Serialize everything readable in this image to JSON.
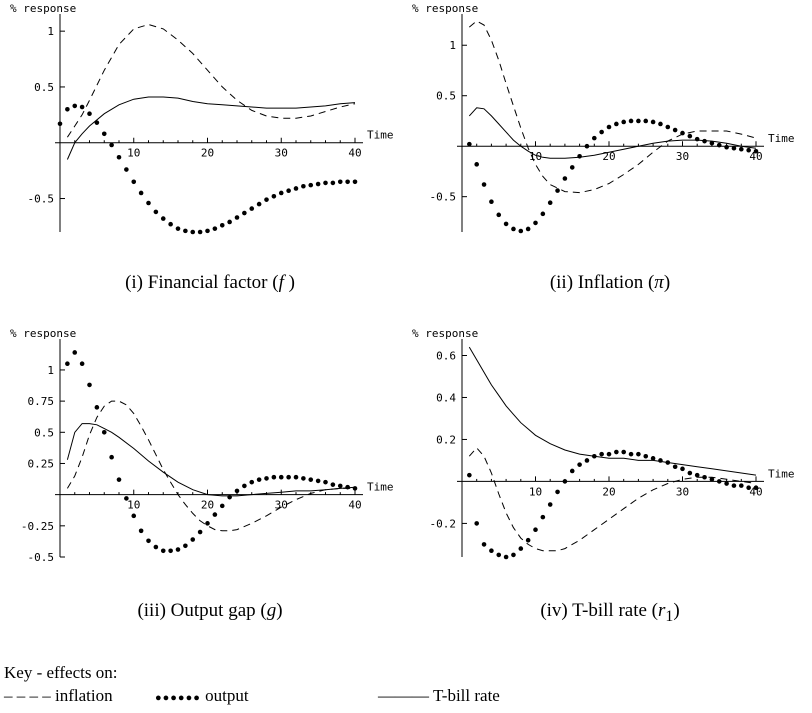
{
  "axis_ylabel": "% response",
  "axis_xlabel": "Time",
  "key": {
    "title": "Key - effects on:",
    "items": [
      {
        "symbol": "– – – –",
        "label": "inflation"
      },
      {
        "symbol": "●●●●●●",
        "label": "output"
      },
      {
        "symbol": "———",
        "label": "T-bill rate"
      }
    ]
  },
  "chart_data": [
    {
      "type": "line",
      "caption_prefix": "(i) Financial factor (",
      "caption_symbol": "f",
      "caption_suffix": " )",
      "ylabel": "% response",
      "xlabel": "Time",
      "xlim": [
        0,
        40
      ],
      "ylim": [
        -0.8,
        1.1
      ],
      "xticks": [
        10,
        20,
        30,
        40
      ],
      "yticks": [
        1,
        0.5,
        -0.5
      ],
      "ytick_labels": [
        "1",
        "0.5",
        "-0.5"
      ],
      "series": [
        {
          "name": "inflation",
          "style": "dashed",
          "x": [
            1,
            2,
            3,
            4,
            6,
            8,
            10,
            12,
            14,
            16,
            18,
            20,
            22,
            24,
            26,
            28,
            30,
            32,
            34,
            36,
            38,
            40
          ],
          "y": [
            0.05,
            0.15,
            0.25,
            0.38,
            0.65,
            0.88,
            1.02,
            1.06,
            1.02,
            0.92,
            0.8,
            0.65,
            0.5,
            0.38,
            0.29,
            0.24,
            0.22,
            0.22,
            0.24,
            0.28,
            0.32,
            0.35
          ]
        },
        {
          "name": "output",
          "style": "dotted",
          "x": [
            0,
            1,
            2,
            3,
            4,
            5,
            6,
            7,
            8,
            9,
            10,
            11,
            12,
            13,
            14,
            15,
            16,
            17,
            18,
            19,
            20,
            21,
            22,
            23,
            24,
            25,
            26,
            27,
            28,
            29,
            30,
            31,
            32,
            33,
            34,
            35,
            36,
            37,
            38,
            39,
            40
          ],
          "y": [
            0.17,
            0.3,
            0.33,
            0.32,
            0.26,
            0.18,
            0.08,
            -0.02,
            -0.13,
            -0.24,
            -0.35,
            -0.45,
            -0.54,
            -0.62,
            -0.68,
            -0.73,
            -0.77,
            -0.79,
            -0.8,
            -0.8,
            -0.79,
            -0.77,
            -0.74,
            -0.71,
            -0.67,
            -0.63,
            -0.59,
            -0.55,
            -0.51,
            -0.48,
            -0.45,
            -0.43,
            -0.41,
            -0.39,
            -0.38,
            -0.37,
            -0.36,
            -0.36,
            -0.35,
            -0.35,
            -0.35
          ]
        },
        {
          "name": "T-bill rate",
          "style": "solid",
          "x": [
            1,
            2,
            3,
            4,
            6,
            8,
            10,
            12,
            14,
            16,
            18,
            20,
            22,
            24,
            26,
            28,
            30,
            32,
            34,
            36,
            38,
            40
          ],
          "y": [
            -0.15,
            0.0,
            0.08,
            0.15,
            0.26,
            0.34,
            0.39,
            0.41,
            0.41,
            0.4,
            0.37,
            0.35,
            0.34,
            0.33,
            0.32,
            0.31,
            0.31,
            0.31,
            0.32,
            0.33,
            0.35,
            0.36
          ]
        }
      ]
    },
    {
      "type": "line",
      "caption_prefix": "(ii) Inflation (",
      "caption_symbol": "π",
      "caption_suffix": ")",
      "ylabel": "% response",
      "xlabel": "Time",
      "xlim": [
        0,
        40
      ],
      "ylim": [
        -0.85,
        1.25
      ],
      "xticks": [
        10,
        20,
        30,
        40
      ],
      "yticks": [
        1,
        0.5,
        -0.5
      ],
      "ytick_labels": [
        "1",
        "0.5",
        "-0.5"
      ],
      "series": [
        {
          "name": "inflation",
          "style": "dashed",
          "x": [
            1,
            2,
            3,
            4,
            5,
            6,
            7,
            8,
            9,
            10,
            11,
            12,
            14,
            16,
            18,
            20,
            22,
            24,
            26,
            28,
            30,
            32,
            34,
            36,
            38,
            40
          ],
          "y": [
            1.18,
            1.24,
            1.2,
            1.05,
            0.85,
            0.62,
            0.4,
            0.18,
            -0.02,
            -0.18,
            -0.3,
            -0.38,
            -0.45,
            -0.46,
            -0.43,
            -0.37,
            -0.28,
            -0.18,
            -0.06,
            0.05,
            0.12,
            0.15,
            0.15,
            0.15,
            0.12,
            0.08
          ]
        },
        {
          "name": "output",
          "style": "dotted",
          "x": [
            1,
            2,
            3,
            4,
            5,
            6,
            7,
            8,
            9,
            10,
            11,
            12,
            13,
            14,
            15,
            16,
            17,
            18,
            19,
            20,
            21,
            22,
            23,
            24,
            25,
            26,
            27,
            28,
            29,
            30,
            31,
            32,
            33,
            34,
            35,
            36,
            37,
            38,
            39,
            40
          ],
          "y": [
            0.02,
            -0.18,
            -0.38,
            -0.55,
            -0.68,
            -0.77,
            -0.82,
            -0.84,
            -0.82,
            -0.76,
            -0.67,
            -0.56,
            -0.44,
            -0.32,
            -0.21,
            -0.1,
            0.0,
            0.08,
            0.14,
            0.19,
            0.22,
            0.24,
            0.25,
            0.25,
            0.25,
            0.24,
            0.22,
            0.19,
            0.16,
            0.13,
            0.1,
            0.07,
            0.05,
            0.03,
            0.01,
            -0.01,
            -0.02,
            -0.03,
            -0.04,
            -0.05
          ]
        },
        {
          "name": "T-bill rate",
          "style": "solid",
          "x": [
            1,
            2,
            3,
            4,
            5,
            6,
            7,
            8,
            9,
            10,
            11,
            12,
            14,
            16,
            18,
            20,
            22,
            24,
            26,
            28,
            30,
            32,
            34,
            36,
            38,
            40
          ],
          "y": [
            0.3,
            0.38,
            0.37,
            0.3,
            0.22,
            0.14,
            0.06,
            0.0,
            -0.05,
            -0.09,
            -0.11,
            -0.12,
            -0.12,
            -0.11,
            -0.09,
            -0.06,
            -0.03,
            0.0,
            0.03,
            0.05,
            0.06,
            0.06,
            0.05,
            0.03,
            0.0,
            -0.02
          ]
        }
      ]
    },
    {
      "type": "line",
      "caption_prefix": "(iii) Output gap (",
      "caption_symbol": "g",
      "caption_suffix": ")",
      "ylabel": "% response",
      "xlabel": "Time",
      "xlim": [
        0,
        40
      ],
      "ylim": [
        -0.5,
        1.2
      ],
      "xticks": [
        10,
        20,
        30,
        40
      ],
      "yticks": [
        1,
        0.75,
        0.5,
        0.25,
        -0.25,
        -0.5
      ],
      "ytick_labels": [
        "1",
        "0.75",
        "0.5",
        "0.25",
        "-0.25",
        "-0.5"
      ],
      "series": [
        {
          "name": "inflation",
          "style": "dashed",
          "x": [
            1,
            2,
            3,
            4,
            5,
            6,
            7,
            8,
            9,
            10,
            11,
            12,
            13,
            14,
            15,
            16,
            17,
            18,
            19,
            20,
            21,
            22,
            23,
            24,
            26,
            28,
            30,
            32,
            34,
            36,
            38,
            40
          ],
          "y": [
            0.05,
            0.15,
            0.3,
            0.48,
            0.62,
            0.71,
            0.75,
            0.75,
            0.72,
            0.65,
            0.55,
            0.44,
            0.32,
            0.2,
            0.1,
            0.0,
            -0.08,
            -0.15,
            -0.21,
            -0.25,
            -0.28,
            -0.29,
            -0.29,
            -0.28,
            -0.23,
            -0.17,
            -0.1,
            -0.04,
            0.01,
            0.04,
            0.05,
            0.05
          ]
        },
        {
          "name": "output",
          "style": "dotted",
          "x": [
            1,
            2,
            3,
            4,
            5,
            6,
            7,
            8,
            9,
            10,
            11,
            12,
            13,
            14,
            15,
            16,
            17,
            18,
            19,
            20,
            21,
            22,
            23,
            24,
            25,
            26,
            27,
            28,
            29,
            30,
            31,
            32,
            33,
            34,
            35,
            36,
            37,
            38,
            39,
            40
          ],
          "y": [
            1.05,
            1.14,
            1.05,
            0.88,
            0.7,
            0.5,
            0.3,
            0.12,
            -0.03,
            -0.17,
            -0.29,
            -0.37,
            -0.42,
            -0.45,
            -0.45,
            -0.44,
            -0.41,
            -0.36,
            -0.3,
            -0.23,
            -0.16,
            -0.09,
            -0.02,
            0.03,
            0.07,
            0.1,
            0.12,
            0.13,
            0.14,
            0.14,
            0.14,
            0.14,
            0.13,
            0.12,
            0.11,
            0.1,
            0.08,
            0.07,
            0.06,
            0.05
          ]
        },
        {
          "name": "T-bill rate",
          "style": "solid",
          "x": [
            1,
            2,
            3,
            4,
            5,
            6,
            7,
            8,
            10,
            12,
            14,
            16,
            18,
            20,
            22,
            24,
            26,
            28,
            30,
            32,
            34,
            36,
            38,
            40
          ],
          "y": [
            0.28,
            0.5,
            0.57,
            0.57,
            0.56,
            0.53,
            0.5,
            0.46,
            0.37,
            0.27,
            0.18,
            0.1,
            0.04,
            0.0,
            -0.01,
            -0.01,
            0.0,
            0.01,
            0.02,
            0.03,
            0.03,
            0.04,
            0.05,
            0.06
          ]
        }
      ]
    },
    {
      "type": "line",
      "caption_prefix": "(iv) T-bill rate (",
      "caption_symbol": "r",
      "caption_sub": "1",
      "caption_suffix": ")",
      "ylabel": "% response",
      "xlabel": "Time",
      "xlim": [
        0,
        40
      ],
      "ylim": [
        -0.36,
        0.65
      ],
      "xticks": [
        10,
        20,
        30,
        40
      ],
      "yticks": [
        0.6,
        0.4,
        0.2,
        -0.2
      ],
      "ytick_labels": [
        "0.6",
        "0.4",
        "0.2",
        "-0.2"
      ],
      "series": [
        {
          "name": "inflation",
          "style": "dashed",
          "x": [
            1,
            2,
            3,
            4,
            5,
            6,
            7,
            8,
            9,
            10,
            11,
            12,
            13,
            14,
            16,
            18,
            20,
            22,
            24,
            26,
            28,
            30,
            32,
            34,
            36,
            38,
            40
          ],
          "y": [
            0.12,
            0.16,
            0.12,
            0.04,
            -0.06,
            -0.15,
            -0.22,
            -0.27,
            -0.3,
            -0.32,
            -0.33,
            -0.33,
            -0.33,
            -0.32,
            -0.28,
            -0.23,
            -0.18,
            -0.13,
            -0.08,
            -0.04,
            -0.01,
            0.01,
            0.02,
            0.02,
            0.01,
            0.0,
            -0.01
          ]
        },
        {
          "name": "output",
          "style": "dotted",
          "x": [
            1,
            2,
            3,
            4,
            5,
            6,
            7,
            8,
            9,
            10,
            11,
            12,
            13,
            14,
            15,
            16,
            17,
            18,
            19,
            20,
            21,
            22,
            23,
            24,
            25,
            26,
            27,
            28,
            29,
            30,
            31,
            32,
            33,
            34,
            35,
            36,
            37,
            38,
            39,
            40
          ],
          "y": [
            0.03,
            -0.2,
            -0.3,
            -0.33,
            -0.35,
            -0.36,
            -0.35,
            -0.32,
            -0.28,
            -0.23,
            -0.17,
            -0.11,
            -0.05,
            0.0,
            0.05,
            0.08,
            0.1,
            0.12,
            0.13,
            0.13,
            0.14,
            0.14,
            0.13,
            0.13,
            0.12,
            0.11,
            0.1,
            0.09,
            0.07,
            0.06,
            0.04,
            0.03,
            0.02,
            0.01,
            0.0,
            -0.01,
            -0.02,
            -0.02,
            -0.03,
            -0.03
          ]
        },
        {
          "name": "T-bill rate",
          "style": "solid",
          "x": [
            1,
            2,
            3,
            4,
            5,
            6,
            7,
            8,
            9,
            10,
            12,
            14,
            16,
            18,
            20,
            22,
            24,
            26,
            28,
            30,
            32,
            34,
            36,
            38,
            40
          ],
          "y": [
            0.64,
            0.58,
            0.52,
            0.46,
            0.41,
            0.36,
            0.32,
            0.28,
            0.25,
            0.22,
            0.18,
            0.15,
            0.13,
            0.12,
            0.11,
            0.11,
            0.1,
            0.1,
            0.09,
            0.08,
            0.07,
            0.06,
            0.05,
            0.04,
            0.03
          ]
        }
      ]
    }
  ]
}
